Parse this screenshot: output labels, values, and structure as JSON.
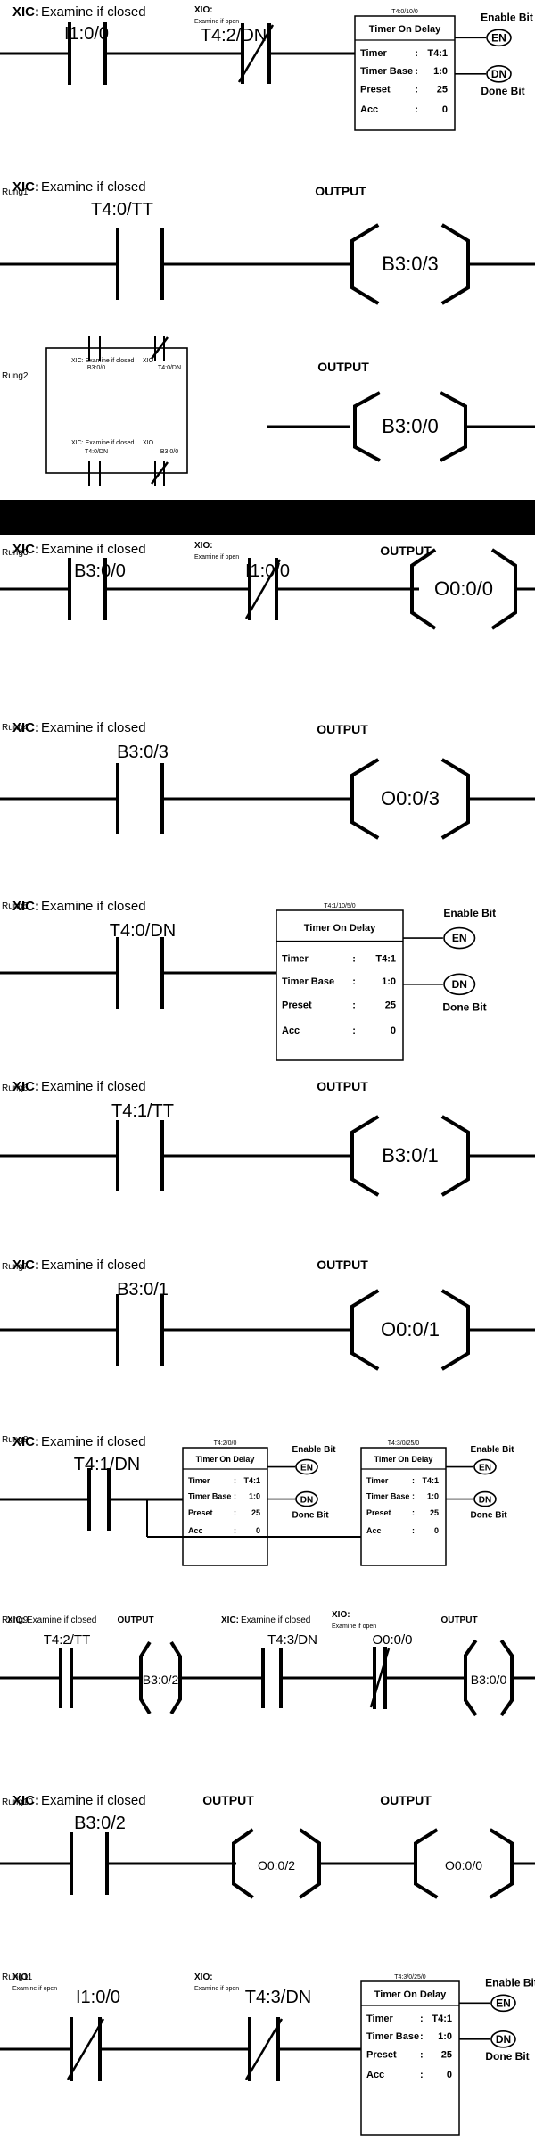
{
  "rungs": [
    {
      "id": "r0",
      "rung_label": "",
      "xic": "XIC:",
      "xic_text": "Examine if closed",
      "contact1": "I1:0/0",
      "xio": "XIO:",
      "xio_text": "Examine if open",
      "contact2": "T4:2/DN",
      "timer": {
        "header": "T4:0/10/0",
        "title": "Timer On Delay",
        "rows": [
          [
            "Timer",
            ":",
            "T4:1"
          ],
          [
            "Timer Base",
            ":",
            "1:0"
          ],
          [
            "Preset",
            ":",
            "25"
          ],
          [
            "Acc",
            ":",
            "0"
          ]
        ],
        "en": "EN",
        "dn": "DN",
        "enable_bit": "Enable Bit",
        "done_bit": "Done Bit"
      }
    },
    {
      "id": "r1",
      "rung_label": "Rung1",
      "xic": "XIC:",
      "xic_text": "Examine if closed",
      "contact1": "T4:0/TT",
      "output": "OUTPUT",
      "coil": "B3:0/3"
    },
    {
      "id": "r2",
      "rung_label": "Rung2",
      "output": "OUTPUT",
      "coil": "B3:0/0",
      "branch": {
        "tl_label": "XIC: Examine if closed",
        "tl_addr": "B3:0/0",
        "tr_label": "XIO",
        "tr_addr": "T4:0/DN",
        "bl_label": "XIC: Examine if closed",
        "bl_addr": "T4:0/DN",
        "br_label": "XIO",
        "br_addr": "B3:0/0"
      }
    },
    {
      "id": "r3",
      "rung_label": "Rung3",
      "xic": "XIC:",
      "xic_text": "Examine if closed",
      "contact1": "B3:0/0",
      "xio": "XIO:",
      "xio_text": "Examine if open",
      "contact2": "I1:0/0",
      "output": "OUTPUT",
      "coil": "O0:0/0"
    },
    {
      "id": "r4",
      "rung_label": "Rung4",
      "xic": "XIC:",
      "xic_text": "Examine if closed",
      "contact1": "B3:0/3",
      "output": "OUTPUT",
      "coil": "O0:0/3"
    },
    {
      "id": "r5",
      "rung_label": "Rung5",
      "xic": "XIC:",
      "xic_text": "Examine if closed",
      "contact1": "T4:0/DN",
      "timer": {
        "header": "T4:1/10/5/0",
        "title": "Timer On Delay",
        "rows": [
          [
            "Timer",
            ":",
            "T4:1"
          ],
          [
            "Timer Base",
            ":",
            "1:0"
          ],
          [
            "Preset",
            ":",
            "25"
          ],
          [
            "Acc",
            ":",
            "0"
          ]
        ],
        "en": "EN",
        "dn": "DN",
        "enable_bit": "Enable Bit",
        "done_bit": "Done Bit"
      }
    },
    {
      "id": "r6",
      "rung_label": "Rung6",
      "xic": "XIC:",
      "xic_text": "Examine if closed",
      "contact1": "T4:1/TT",
      "output": "OUTPUT",
      "coil": "B3:0/1"
    },
    {
      "id": "r7",
      "rung_label": "Rung7",
      "xic": "XIC:",
      "xic_text": "Examine if closed",
      "contact1": "B3:0/1",
      "output": "OUTPUT",
      "coil": "O0:0/1"
    },
    {
      "id": "r8",
      "rung_label": "Rung8",
      "xic": "XIC:",
      "xic_text": "Examine if closed",
      "contact1": "T4:1/DN",
      "timer": {
        "header": "T4:2/0/0",
        "title": "Timer On Delay",
        "rows": [
          [
            "Timer",
            ":",
            "T4:1"
          ],
          [
            "Timer Base",
            ":",
            "1:0"
          ],
          [
            "Preset",
            ":",
            "25"
          ],
          [
            "Acc",
            ":",
            "0"
          ]
        ],
        "en": "EN",
        "dn": "DN",
        "enable_bit": "Enable Bit",
        "done_bit": "Done Bit"
      },
      "timer2": {
        "header": "T4:3/0/25/0",
        "title": "Timer On Delay",
        "rows": [
          [
            "Timer",
            ":",
            "T4:1"
          ],
          [
            "Timer Base",
            ":",
            "1:0"
          ],
          [
            "Preset",
            ":",
            "25"
          ],
          [
            "Acc",
            ":",
            "0"
          ]
        ],
        "en": "EN",
        "dn": "DN",
        "enable_bit": "Enable Bit",
        "done_bit": "Done Bit"
      }
    },
    {
      "id": "r9",
      "rung_label": "Rung9",
      "xic": "XIC:",
      "xic_text": "Examine if closed",
      "contact1": "T4:2/TT",
      "output": "OUTPUT",
      "coil": "B3:0/2",
      "xic2": "XIC:",
      "xic2_text": "Examine if closed",
      "contact2": "T4:3/DN",
      "xio": "XIO:",
      "xio_text": "Examine if open",
      "contact3": "O0:0/0",
      "output2": "OUTPUT",
      "coil2": "B3:0/0"
    },
    {
      "id": "r10",
      "rung_label": "Rung10",
      "xic": "XIC:",
      "xic_text": "Examine if closed",
      "contact1": "B3:0/2",
      "output": "OUTPUT",
      "coil": "O0:0/2",
      "output2": "OUTPUT",
      "coil2": "O0:0/0"
    },
    {
      "id": "r11",
      "rung_label": "Rung11",
      "xio": "XIO:",
      "xio_text": "Examine if open",
      "contact1": "I1:0/0",
      "xio2": "XIO:",
      "xio2_text": "Examine if open",
      "contact2": "T4:3/DN",
      "timer": {
        "header": "T4:3/0/25/0",
        "title": "Timer On Delay",
        "rows": [
          [
            "Timer",
            ":",
            "T4:1"
          ],
          [
            "Timer Base",
            ":",
            "1:0"
          ],
          [
            "Preset",
            ":",
            "25"
          ],
          [
            "Acc",
            ":",
            "0"
          ]
        ],
        "en": "EN",
        "dn": "DN",
        "enable_bit": "Enable Bit",
        "done_bit": "Done Bit"
      }
    }
  ]
}
